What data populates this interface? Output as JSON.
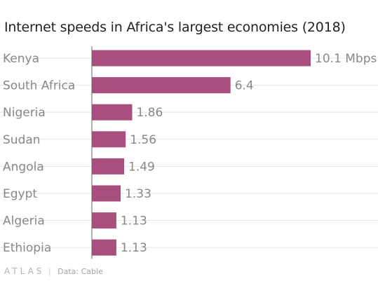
{
  "footer": {
    "brand": "ATLAS",
    "separator": "|",
    "source_prefix": "Data:",
    "source": "Cable"
  },
  "colors": {
    "bar": "#a84f7e",
    "grid": "#e6e6e6",
    "axis": "#666666",
    "label": "#888888",
    "title": "#222222"
  },
  "chart_data": {
    "type": "bar",
    "orientation": "horizontal",
    "title": "Internet speeds in Africa's largest economies (2018)",
    "xlabel": "",
    "ylabel": "",
    "unit": "Mbps",
    "categories": [
      "Kenya",
      "South Africa",
      "Nigeria",
      "Sudan",
      "Angola",
      "Egypt",
      "Algeria",
      "Ethiopia"
    ],
    "values": [
      10.1,
      6.4,
      1.86,
      1.56,
      1.49,
      1.33,
      1.13,
      1.13
    ],
    "value_labels": [
      "10.1 Mbps",
      "6.4",
      "1.86",
      "1.56",
      "1.49",
      "1.33",
      "1.13",
      "1.13"
    ],
    "xlim": [
      0,
      10.1
    ],
    "grid": true,
    "legend": "none"
  }
}
